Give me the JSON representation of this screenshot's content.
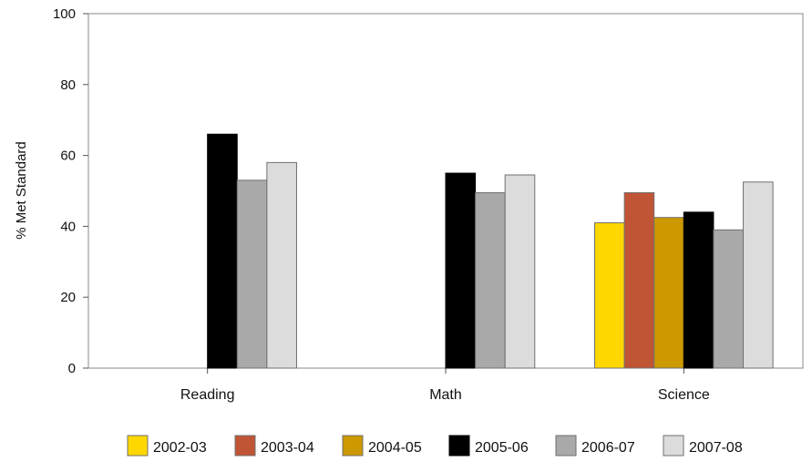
{
  "chart_data": {
    "type": "bar",
    "title": "",
    "xlabel": "",
    "ylabel": "% Met Standard",
    "ylim": [
      0,
      100
    ],
    "yticks": [
      0,
      20,
      40,
      60,
      80,
      100
    ],
    "grid": false,
    "legend_position": "bottom",
    "categories": [
      "Reading",
      "Math",
      "Science"
    ],
    "series": [
      {
        "name": "2002-03",
        "color": "#FFD700",
        "values": [
          null,
          null,
          41
        ]
      },
      {
        "name": "2003-04",
        "color": "#C05535",
        "values": [
          null,
          null,
          49.5
        ]
      },
      {
        "name": "2004-05",
        "color": "#CC9900",
        "values": [
          null,
          null,
          42.5
        ]
      },
      {
        "name": "2005-06",
        "color": "#000000",
        "values": [
          66,
          55,
          44
        ]
      },
      {
        "name": "2006-07",
        "color": "#A9A9A9",
        "values": [
          53,
          49.5,
          39
        ]
      },
      {
        "name": "2007-08",
        "color": "#DCDCDC",
        "values": [
          58,
          54.5,
          52.5
        ]
      }
    ]
  }
}
